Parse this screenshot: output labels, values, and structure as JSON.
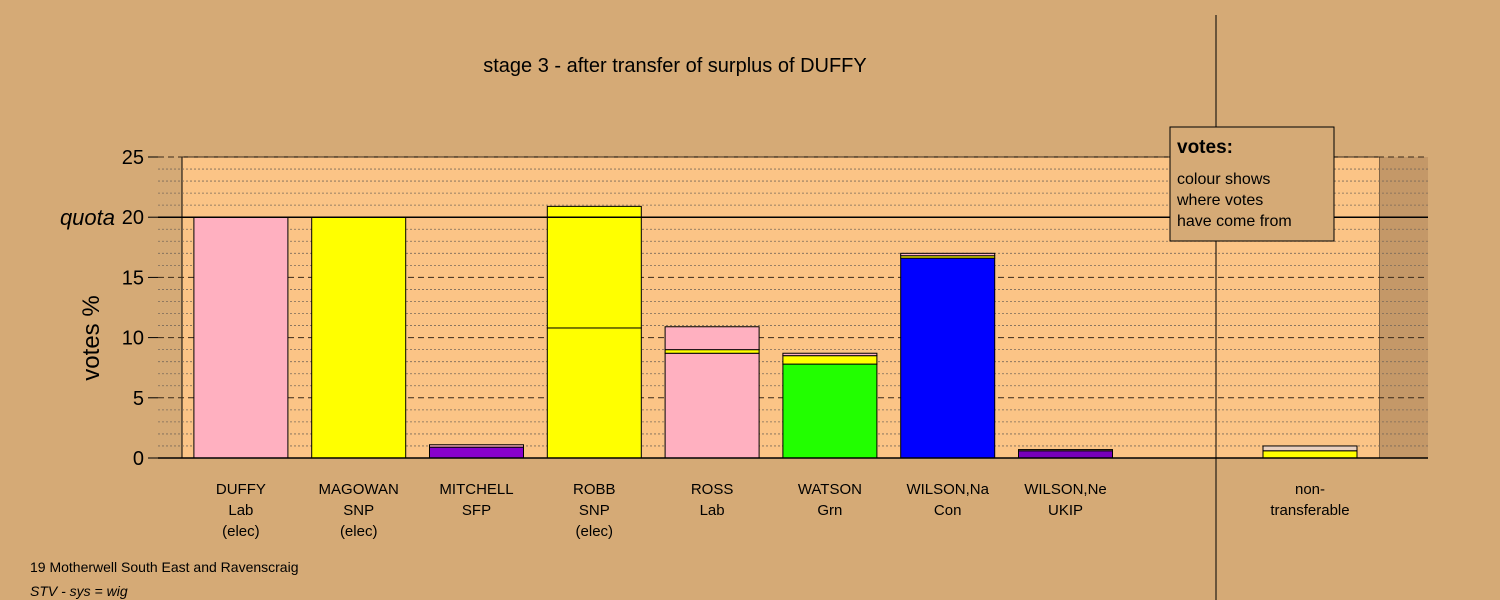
{
  "chart_data": {
    "type": "bar",
    "stacked": true,
    "title": "stage 3 - after transfer of surplus of DUFFY",
    "ylabel": "votes %",
    "ylim": [
      0,
      25
    ],
    "yticks": [
      0,
      5,
      10,
      15,
      20,
      25
    ],
    "quota": 20,
    "quota_label": "quota",
    "grid": true,
    "legend": {
      "placement": "top-right",
      "title": "votes:",
      "lines": [
        "colour shows",
        "where votes",
        "have come from"
      ]
    },
    "colors": {
      "background": "#d5aa76",
      "plot_area": "#fbc486",
      "Lab": "#ffb0c0",
      "SNP": "#ffff00",
      "SFP": "#8800cc",
      "Grn": "#22ff00",
      "Con": "#0000ff",
      "UKIP": "#7700bb",
      "non": "#e8d0c0"
    },
    "bars": [
      {
        "name": "DUFFY",
        "party": "Lab",
        "status": "(elec)",
        "segments": [
          {
            "from": "Lab",
            "value": 20.0
          }
        ]
      },
      {
        "name": "MAGOWAN",
        "party": "SNP",
        "status": "(elec)",
        "segments": [
          {
            "from": "SNP",
            "value": 20.0
          }
        ]
      },
      {
        "name": "MITCHELL",
        "party": "SFP",
        "status": "",
        "segments": [
          {
            "from": "SFP",
            "value": 0.9
          },
          {
            "from": "Lab",
            "value": 0.2
          }
        ]
      },
      {
        "name": "ROBB",
        "party": "SNP",
        "status": "(elec)",
        "segments": [
          {
            "from": "SNP",
            "value": 10.8
          },
          {
            "from": "SNP",
            "value": 10.1
          }
        ]
      },
      {
        "name": "ROSS",
        "party": "Lab",
        "status": "",
        "segments": [
          {
            "from": "Lab",
            "value": 8.7
          },
          {
            "from": "SNP",
            "value": 0.3
          },
          {
            "from": "Lab",
            "value": 1.9
          }
        ]
      },
      {
        "name": "WATSON",
        "party": "Grn",
        "status": "",
        "segments": [
          {
            "from": "Grn",
            "value": 7.8
          },
          {
            "from": "SNP",
            "value": 0.7
          },
          {
            "from": "Lab",
            "value": 0.2
          }
        ]
      },
      {
        "name": "WILSON,Na",
        "party": "Con",
        "status": "",
        "segments": [
          {
            "from": "Con",
            "value": 16.6
          },
          {
            "from": "SNP",
            "value": 0.2
          },
          {
            "from": "Lab",
            "value": 0.2
          }
        ]
      },
      {
        "name": "WILSON,Ne",
        "party": "UKIP",
        "status": "",
        "segments": [
          {
            "from": "UKIP",
            "value": 0.6
          },
          {
            "from": "Lab",
            "value": 0.1
          }
        ]
      }
    ],
    "nontransferable": {
      "label_line1": "non-",
      "label_line2": "transferable",
      "segments": [
        {
          "from": "SNP",
          "value": 0.6
        },
        {
          "from": "non",
          "value": 0.4
        }
      ]
    }
  },
  "footer": {
    "constituency": "19 Motherwell South East and Ravenscraig",
    "system": "STV - sys = wig"
  }
}
